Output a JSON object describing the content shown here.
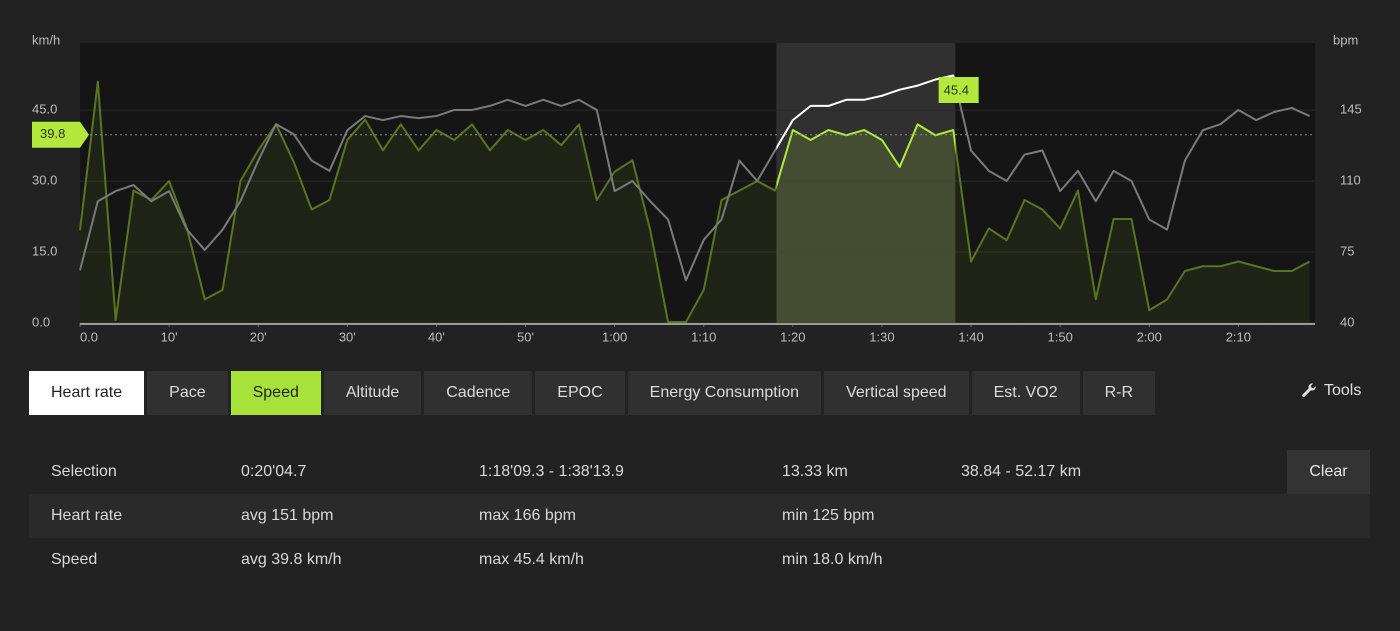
{
  "chart_data": {
    "type": "line",
    "y_unit": "km/h",
    "y2_unit": "bpm",
    "x": [
      0,
      2,
      4,
      6,
      8,
      10,
      12,
      14,
      16,
      18,
      20,
      22,
      24,
      26,
      28,
      30,
      32,
      34,
      36,
      38,
      40,
      42,
      44,
      46,
      48,
      50,
      52,
      54,
      56,
      58,
      60,
      62,
      64,
      66,
      68,
      70,
      72,
      74,
      76,
      78,
      80,
      82,
      84,
      86,
      88,
      90,
      92,
      94,
      96,
      98,
      100,
      102,
      104,
      106,
      108,
      110,
      112,
      114,
      116,
      118,
      120,
      122,
      124,
      126,
      128,
      130,
      132,
      134,
      136,
      138
    ],
    "series": [
      {
        "name": "Speed",
        "color": "#5a7420",
        "selection_color": "#b3e83c",
        "values": [
          19.6,
          51,
          0.6,
          28,
          26,
          30,
          20,
          5,
          7,
          30,
          36.5,
          42,
          34,
          24,
          26,
          38.7,
          43,
          36.5,
          42,
          36.5,
          40.8,
          38.7,
          42,
          36.5,
          40.8,
          38.7,
          40.8,
          37.6,
          42,
          26,
          32,
          34.4,
          19.6,
          0.2,
          0.2,
          7,
          26,
          28,
          30,
          28,
          40.8,
          38.7,
          40.8,
          39.7,
          40.8,
          38.7,
          33,
          42,
          39.7,
          40.8,
          13,
          20,
          17.5,
          26,
          24,
          20,
          28,
          5,
          22,
          22,
          2.7,
          5,
          11,
          12,
          12,
          13,
          12,
          11,
          11,
          13
        ]
      },
      {
        "name": "Heart rate",
        "color": "#7a7a7a",
        "selection_color": "#ffffff",
        "axis": "y2",
        "values": [
          66,
          100,
          105,
          108,
          100,
          105,
          86,
          76,
          86,
          100,
          120,
          138,
          133,
          120,
          115,
          135,
          142,
          140,
          142,
          141,
          142,
          145,
          145,
          147,
          150,
          147,
          150,
          147,
          150,
          145,
          105,
          110,
          100,
          91,
          61,
          81,
          91,
          120,
          110,
          125,
          140,
          147,
          147,
          150,
          150,
          152,
          155,
          157,
          160,
          162,
          125,
          115,
          110,
          123,
          125,
          105,
          115,
          100,
          115,
          110,
          91,
          86,
          120,
          135,
          138,
          145,
          140,
          144,
          146,
          142
        ]
      }
    ],
    "xlim": [
      0,
      138.6
    ],
    "xticks": [
      {
        "value": 0,
        "label": "0.0"
      },
      {
        "value": 10,
        "label": "10'"
      },
      {
        "value": 20,
        "label": "20'"
      },
      {
        "value": 30,
        "label": "30'"
      },
      {
        "value": 40,
        "label": "40'"
      },
      {
        "value": 50,
        "label": "50'"
      },
      {
        "value": 60,
        "label": "1:00"
      },
      {
        "value": 70,
        "label": "1:10"
      },
      {
        "value": 80,
        "label": "1:20"
      },
      {
        "value": 90,
        "label": "1:30"
      },
      {
        "value": 100,
        "label": "1:40"
      },
      {
        "value": 110,
        "label": "1:50"
      },
      {
        "value": 120,
        "label": "2:00"
      },
      {
        "value": 130,
        "label": "2:10"
      }
    ],
    "ylim": [
      0,
      59.2
    ],
    "yticks": [
      {
        "value": 0,
        "label": "0.0"
      },
      {
        "value": 15,
        "label": "15.0"
      },
      {
        "value": 30,
        "label": "30.0"
      },
      {
        "value": 45,
        "label": "45.0"
      }
    ],
    "y2lim": [
      40,
      178
    ],
    "y2ticks": [
      40,
      75,
      110,
      145
    ],
    "selection": [
      78.15,
      98.23
    ],
    "avg_marker": 39.8,
    "max_marker": {
      "x": 96.7,
      "value": 45.4
    },
    "grid": true
  },
  "tabs": [
    {
      "label": "Heart rate",
      "color": "#ffffff"
    },
    {
      "label": "Pace"
    },
    {
      "label": "Speed",
      "color": "#a6e23a"
    },
    {
      "label": "Altitude"
    },
    {
      "label": "Cadence"
    },
    {
      "label": "EPOC"
    },
    {
      "label": "Energy Consumption"
    },
    {
      "label": "Vertical speed"
    },
    {
      "label": "Est. VO2"
    },
    {
      "label": "R-R"
    }
  ],
  "tools": "Tools",
  "summary": {
    "rows": [
      [
        "Selection",
        "0:20'04.7",
        "1:18'09.3 - 1:38'13.9",
        "13.33 km",
        "38.84 - 52.17 km"
      ],
      [
        "Heart rate",
        "avg 151 bpm",
        "max 166 bpm",
        "min 125 bpm"
      ],
      [
        "Speed",
        "avg 39.8 km/h",
        "max 45.4 km/h",
        "min 18.0 km/h"
      ]
    ],
    "clear": "Clear"
  }
}
